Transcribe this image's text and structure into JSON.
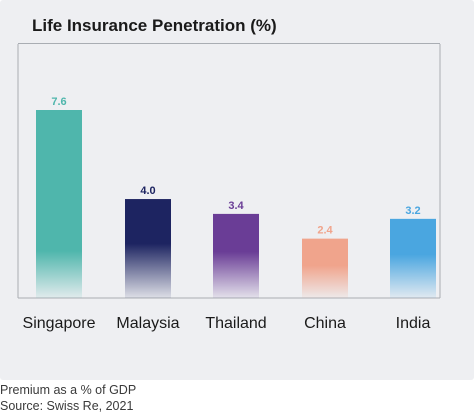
{
  "chart_data": {
    "type": "bar",
    "title": "Life Insurance Penetration (%)",
    "categories": [
      "Singapore",
      "Malaysia",
      "Thailand",
      "China",
      "India"
    ],
    "values": [
      7.6,
      4.0,
      3.4,
      2.4,
      3.2
    ],
    "value_labels": [
      "7.6",
      "4.0",
      "3.4",
      "2.4",
      "3.2"
    ],
    "colors": [
      "#4fb6ac",
      "#1d2461",
      "#6a3d96",
      "#f0a48c",
      "#4aa6e0"
    ],
    "xlabel": "",
    "ylabel": "",
    "ylim": [
      0,
      8
    ],
    "grid": false,
    "legend": "none"
  },
  "footnotes": {
    "line1": "Premium as a % of GDP",
    "line2": "Source: Swiss Re, 2021"
  }
}
